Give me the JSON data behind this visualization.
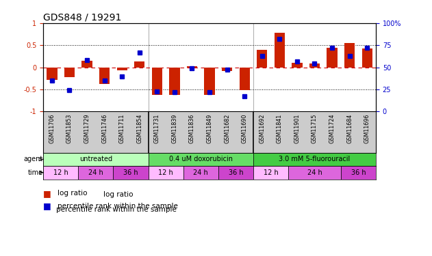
{
  "title": "GDS848 / 19291",
  "samples": [
    "GSM11706",
    "GSM11853",
    "GSM11729",
    "GSM11746",
    "GSM11711",
    "GSM11854",
    "GSM11731",
    "GSM11839",
    "GSM11836",
    "GSM11849",
    "GSM11682",
    "GSM11690",
    "GSM11692",
    "GSM11841",
    "GSM11901",
    "GSM11715",
    "GSM11724",
    "GSM11684",
    "GSM11696"
  ],
  "log_ratio": [
    -0.28,
    -0.22,
    0.15,
    -0.38,
    -0.07,
    0.13,
    -0.63,
    -0.62,
    0.02,
    -0.62,
    -0.08,
    -0.52,
    0.4,
    0.78,
    0.1,
    0.08,
    0.44,
    0.55,
    0.42
  ],
  "percentile": [
    35,
    24,
    58,
    35,
    40,
    67,
    23,
    22,
    49,
    22,
    47,
    17,
    63,
    82,
    57,
    54,
    72,
    63,
    72
  ],
  "agents": [
    {
      "label": "untreated",
      "start": 0,
      "end": 6,
      "color": "#bbffbb"
    },
    {
      "label": "0.4 uM doxorubicin",
      "start": 6,
      "end": 12,
      "color": "#66dd66"
    },
    {
      "label": "3.0 mM 5-fluorouracil",
      "start": 12,
      "end": 19,
      "color": "#44cc44"
    }
  ],
  "times": [
    {
      "label": "12 h",
      "start": 0,
      "end": 2,
      "color": "#ffbbff"
    },
    {
      "label": "24 h",
      "start": 2,
      "end": 4,
      "color": "#dd66dd"
    },
    {
      "label": "36 h",
      "start": 4,
      "end": 6,
      "color": "#cc44cc"
    },
    {
      "label": "12 h",
      "start": 6,
      "end": 8,
      "color": "#ffbbff"
    },
    {
      "label": "24 h",
      "start": 8,
      "end": 10,
      "color": "#dd66dd"
    },
    {
      "label": "36 h",
      "start": 10,
      "end": 12,
      "color": "#cc44cc"
    },
    {
      "label": "12 h",
      "start": 12,
      "end": 14,
      "color": "#ffbbff"
    },
    {
      "label": "24 h",
      "start": 14,
      "end": 17,
      "color": "#dd66dd"
    },
    {
      "label": "36 h",
      "start": 17,
      "end": 19,
      "color": "#cc44cc"
    }
  ],
  "bar_color": "#cc2200",
  "dot_color": "#0000cc",
  "bg_color": "#ffffff",
  "label_bg": "#cccccc",
  "ylim": [
    -1.0,
    1.0
  ],
  "y2lim": [
    0,
    100
  ],
  "yticks": [
    -1.0,
    -0.5,
    0.0,
    0.5,
    1.0
  ],
  "ytick_labels": [
    "-1",
    "-0.5",
    "0",
    "0.5",
    "1"
  ],
  "y2ticks": [
    0,
    25,
    50,
    75,
    100
  ],
  "y2tick_labels": [
    "0",
    "25",
    "50",
    "75",
    "100%"
  ]
}
